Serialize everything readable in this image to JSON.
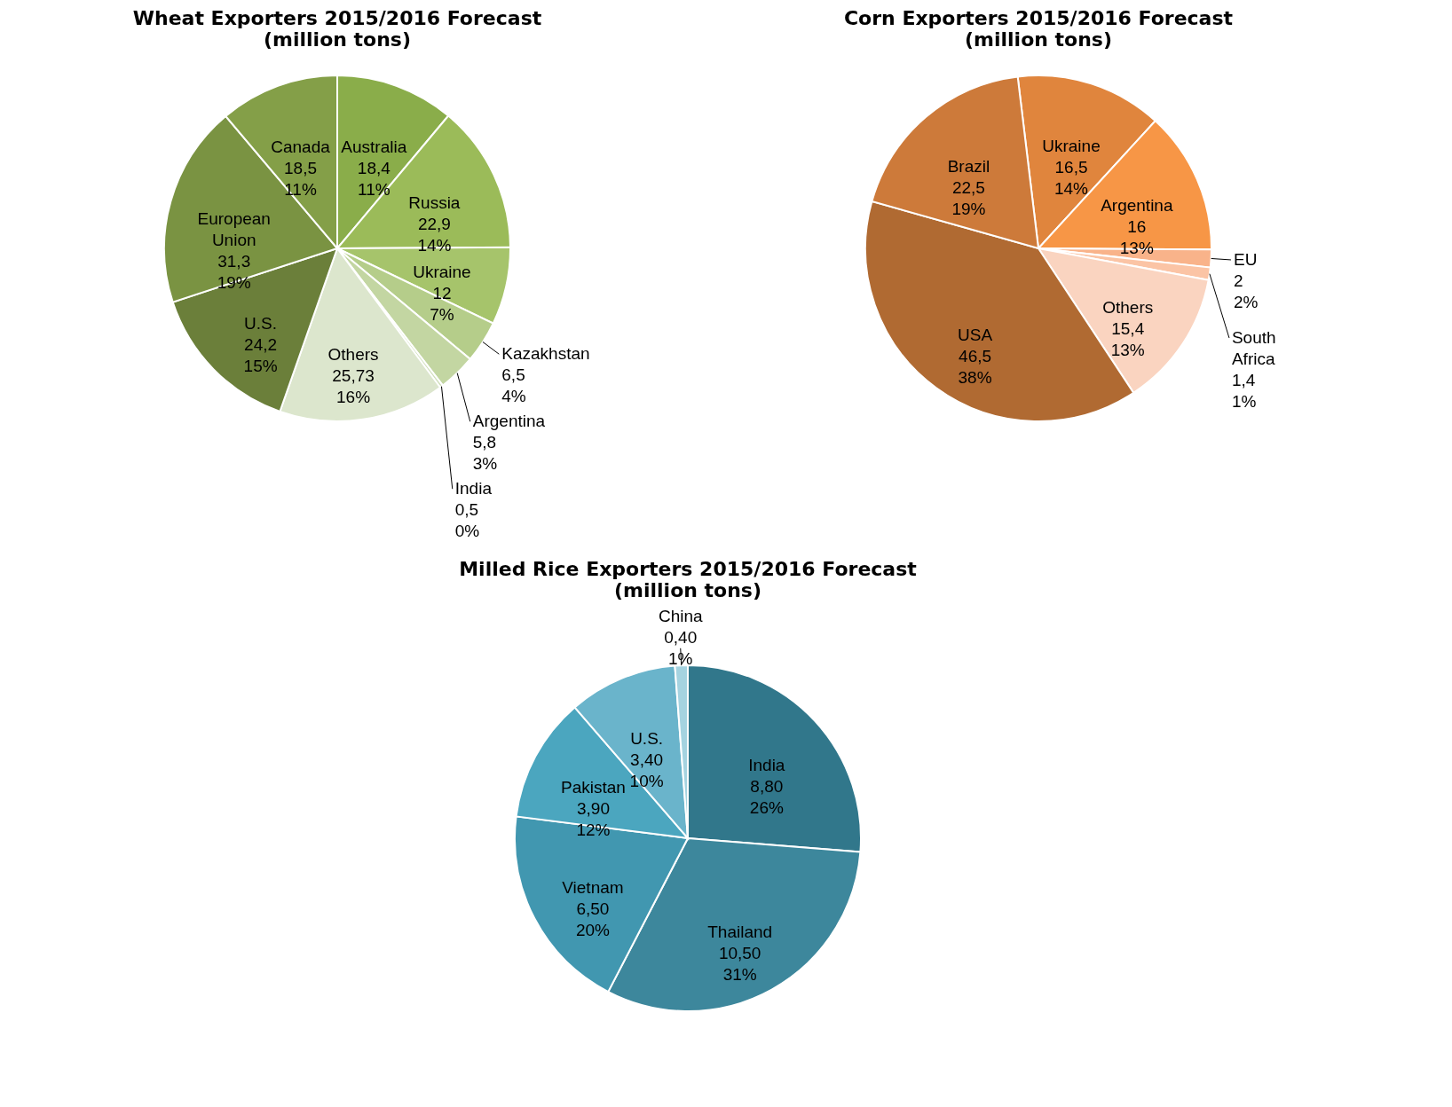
{
  "chart_data": [
    {
      "type": "pie",
      "title": "Wheat Exporters 2015/2016 Forecast",
      "subtitle": "(million tons)",
      "categories": [
        "Australia",
        "Russia",
        "Ukraine",
        "Kazakhstan",
        "Argentina",
        "India",
        "Others",
        "U.S.",
        "European Union",
        "Canada"
      ],
      "values": [
        18.4,
        22.9,
        12,
        6.5,
        5.8,
        0.5,
        25.73,
        24.2,
        31.3,
        18.5
      ],
      "value_labels": [
        "18,4\n11%",
        "22,9\n14%",
        "12\n7%",
        "6,5\n4%",
        "5,8\n3%",
        "0,5\n0%",
        "25,73\n16%",
        "24,2\n15%",
        "31,3\n19%",
        "18,5\n11%"
      ],
      "colors": [
        "#8aad4a",
        "#9bbb59",
        "#a6c46b",
        "#b5cd8a",
        "#c3d6a2",
        "#d0dfbb",
        "#dce6cd",
        "#6b7f3a",
        "#7a9342",
        "#849f48"
      ]
    },
    {
      "type": "pie",
      "title": "Corn Exporters 2015/2016 Forecast",
      "subtitle": "(million tons)",
      "categories": [
        "Ukraine",
        "Argentina",
        "EU",
        "South Africa",
        "Others",
        "USA",
        "Brazil"
      ],
      "values": [
        16.5,
        16,
        2,
        1.4,
        15.4,
        46.5,
        22.5
      ],
      "value_labels": [
        "16,5\n14%",
        "16\n13%",
        "2\n2%",
        "1,4\n1%",
        "15,4\n13%",
        "46,5\n38%",
        "22,5\n19%"
      ],
      "colors": [
        "#e0853d",
        "#f79646",
        "#f9b38a",
        "#fbc4a5",
        "#fad4c0",
        "#b06a32",
        "#cd7a3a"
      ]
    },
    {
      "type": "pie",
      "title": "Milled Rice Exporters 2015/2016 Forecast",
      "subtitle": "(million tons)",
      "categories": [
        "India",
        "Thailand",
        "Vietnam",
        "Pakistan",
        "U.S.",
        "China"
      ],
      "values": [
        8.8,
        10.5,
        6.5,
        3.9,
        3.4,
        0.4
      ],
      "value_labels": [
        "8,80\n26%",
        "10,50\n31%",
        "6,50\n20%",
        "3,90\n12%",
        "3,40\n10%",
        "0,40\n1%"
      ],
      "colors": [
        "#31778b",
        "#3d879c",
        "#4197b0",
        "#4ba6bf",
        "#6ab4cb",
        "#a5d3e0"
      ]
    }
  ]
}
